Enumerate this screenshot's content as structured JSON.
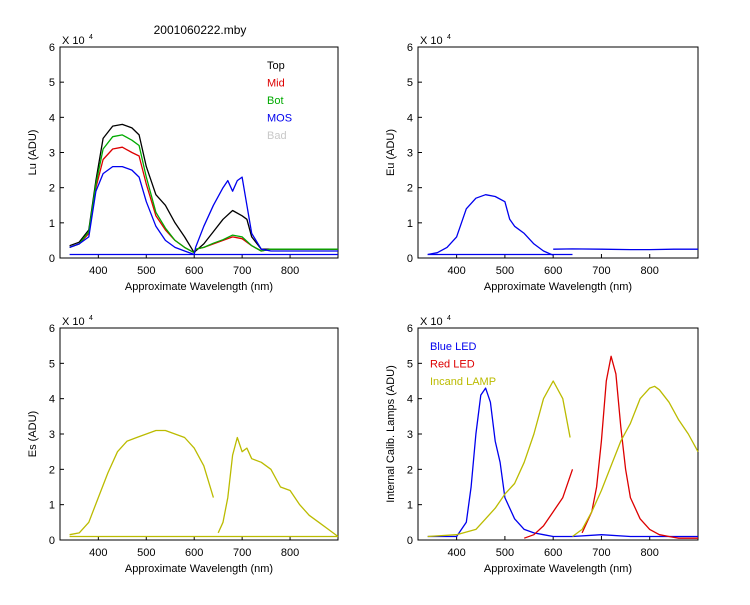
{
  "figure_title": "2001060222.mby",
  "chart_data": [
    {
      "type": "line",
      "panel": "top-left",
      "xlabel": "Approximate Wavelength (nm)",
      "ylabel": "Lu (ADU)",
      "y_exponent_label": "X 10",
      "y_exponent_power": "4",
      "xlim": [
        320,
        900
      ],
      "ylim": [
        0,
        6
      ],
      "xticks": [
        400,
        500,
        600,
        700,
        800
      ],
      "yticks": [
        0,
        1,
        2,
        3,
        4,
        5,
        6
      ],
      "legend": {
        "placement": "top-right",
        "entries": [
          {
            "label": "Top",
            "color": "#000000"
          },
          {
            "label": "Mid",
            "color": "#dd0000"
          },
          {
            "label": "Bot",
            "color": "#00aa00"
          },
          {
            "label": "MOS",
            "color": "#0000ee"
          },
          {
            "label": "Bad",
            "color": "#c8c8c8"
          }
        ]
      },
      "series": [
        {
          "name": "Top",
          "color": "#000000",
          "x": [
            340,
            360,
            380,
            395,
            410,
            430,
            450,
            470,
            485,
            500,
            520,
            540,
            560,
            580,
            600,
            603,
            620,
            640,
            660,
            680,
            700,
            710,
            720,
            740,
            760,
            800,
            850,
            900
          ],
          "y": [
            0.35,
            0.45,
            0.8,
            2.2,
            3.4,
            3.75,
            3.8,
            3.7,
            3.5,
            2.6,
            1.8,
            1.5,
            1.0,
            0.6,
            0.15,
            0.2,
            0.4,
            0.75,
            1.1,
            1.35,
            1.2,
            1.1,
            0.6,
            0.25,
            0.25,
            0.25,
            0.25,
            0.25
          ]
        },
        {
          "name": "Mid",
          "color": "#dd0000",
          "x": [
            340,
            360,
            380,
            395,
            410,
            430,
            450,
            470,
            485,
            500,
            520,
            540,
            560,
            580,
            600,
            603,
            620,
            640,
            660,
            680,
            700,
            720,
            740,
            760,
            800,
            850,
            900
          ],
          "y": [
            0.3,
            0.4,
            0.7,
            2.0,
            2.8,
            3.1,
            3.15,
            3.0,
            2.9,
            2.1,
            1.2,
            0.8,
            0.5,
            0.3,
            0.15,
            0.25,
            0.3,
            0.4,
            0.5,
            0.6,
            0.55,
            0.35,
            0.2,
            0.25,
            0.25,
            0.25,
            0.25
          ]
        },
        {
          "name": "Bot",
          "color": "#00aa00",
          "x": [
            340,
            360,
            380,
            395,
            410,
            430,
            450,
            470,
            485,
            500,
            520,
            540,
            560,
            580,
            600,
            603,
            620,
            640,
            660,
            680,
            700,
            720,
            740,
            760,
            800,
            850,
            900
          ],
          "y": [
            0.3,
            0.4,
            0.75,
            2.1,
            3.1,
            3.45,
            3.5,
            3.35,
            3.2,
            2.3,
            1.3,
            0.85,
            0.5,
            0.3,
            0.15,
            0.25,
            0.3,
            0.42,
            0.52,
            0.65,
            0.6,
            0.35,
            0.2,
            0.25,
            0.25,
            0.25,
            0.25
          ]
        },
        {
          "name": "MOS",
          "color": "#0000ee",
          "x": [
            340,
            360,
            380,
            395,
            410,
            430,
            450,
            470,
            485,
            500,
            520,
            540,
            560,
            580,
            600,
            603,
            620,
            640,
            660,
            670,
            680,
            690,
            700,
            710,
            720,
            740,
            760,
            800,
            850,
            900
          ],
          "y": [
            0.3,
            0.4,
            0.6,
            1.9,
            2.4,
            2.6,
            2.6,
            2.5,
            2.3,
            1.6,
            0.9,
            0.5,
            0.3,
            0.2,
            0.1,
            0.3,
            0.9,
            1.5,
            2.0,
            2.2,
            1.9,
            2.2,
            2.3,
            1.5,
            0.7,
            0.25,
            0.2,
            0.2,
            0.2,
            0.2
          ]
        },
        {
          "name": "",
          "color": "#0000ee",
          "x": [
            340,
            900
          ],
          "y": [
            0.1,
            0.1
          ]
        }
      ]
    },
    {
      "type": "line",
      "panel": "top-right",
      "xlabel": "Approximate Wavelength (nm)",
      "ylabel": "Eu  (ADU)",
      "y_exponent_label": "X 10",
      "y_exponent_power": "4",
      "xlim": [
        320,
        900
      ],
      "ylim": [
        0,
        6
      ],
      "xticks": [
        400,
        500,
        600,
        700,
        800
      ],
      "yticks": [
        0,
        1,
        2,
        3,
        4,
        5,
        6
      ],
      "series": [
        {
          "name": "",
          "color": "#0000ee",
          "x": [
            340,
            360,
            380,
            400,
            420,
            440,
            460,
            480,
            500,
            510,
            520,
            540,
            560,
            580,
            600
          ],
          "y": [
            0.1,
            0.15,
            0.3,
            0.6,
            1.4,
            1.7,
            1.8,
            1.75,
            1.6,
            1.1,
            0.9,
            0.7,
            0.4,
            0.2,
            0.08
          ]
        },
        {
          "name": "",
          "color": "#0000ee",
          "x": [
            600,
            640,
            700,
            760,
            800,
            850,
            900
          ],
          "y": [
            0.25,
            0.26,
            0.25,
            0.24,
            0.24,
            0.25,
            0.25
          ]
        },
        {
          "name": "",
          "color": "#0000ee",
          "x": [
            340,
            640
          ],
          "y": [
            0.1,
            0.1
          ]
        }
      ]
    },
    {
      "type": "line",
      "panel": "bottom-left",
      "xlabel": "Approximate Wavelength (nm)",
      "ylabel": "Es  (ADU)",
      "y_exponent_label": "X 10",
      "y_exponent_power": "4",
      "xlim": [
        320,
        900
      ],
      "ylim": [
        0,
        6
      ],
      "xticks": [
        400,
        500,
        600,
        700,
        800
      ],
      "yticks": [
        0,
        1,
        2,
        3,
        4,
        5,
        6
      ],
      "series": [
        {
          "name": "",
          "color": "#bbbb00",
          "x": [
            340,
            360,
            380,
            400,
            420,
            440,
            460,
            480,
            500,
            520,
            540,
            560,
            580,
            600,
            620,
            640
          ],
          "y": [
            0.15,
            0.2,
            0.5,
            1.2,
            1.9,
            2.5,
            2.8,
            2.9,
            3.0,
            3.1,
            3.1,
            3.0,
            2.9,
            2.6,
            2.1,
            1.2
          ]
        },
        {
          "name": "",
          "color": "#bbbb00",
          "x": [
            650,
            660,
            670,
            680,
            690,
            700,
            710,
            720,
            740,
            760,
            780,
            800,
            820,
            840,
            860,
            880,
            900
          ],
          "y": [
            0.2,
            0.5,
            1.2,
            2.4,
            2.9,
            2.5,
            2.6,
            2.3,
            2.2,
            2.0,
            1.5,
            1.4,
            1.0,
            0.7,
            0.5,
            0.3,
            0.1
          ]
        },
        {
          "name": "",
          "color": "#bbbb00",
          "x": [
            340,
            900
          ],
          "y": [
            0.1,
            0.1
          ]
        }
      ]
    },
    {
      "type": "line",
      "panel": "bottom-right",
      "xlabel": "Approximate Wavelength (nm)",
      "ylabel": "Internal Calib. Lamps (ADU)",
      "y_exponent_label": "X 10",
      "y_exponent_power": "4",
      "xlim": [
        320,
        900
      ],
      "ylim": [
        0,
        6
      ],
      "xticks": [
        400,
        500,
        600,
        700,
        800
      ],
      "yticks": [
        0,
        1,
        2,
        3,
        4,
        5,
        6
      ],
      "legend": {
        "placement": "top-left",
        "entries": [
          {
            "label": "Blue LED",
            "color": "#0000ee"
          },
          {
            "label": "Red LED",
            "color": "#dd0000"
          },
          {
            "label": "Incand LAMP",
            "color": "#bbbb00"
          }
        ]
      },
      "series": [
        {
          "name": "Blue LED",
          "color": "#0000ee",
          "x": [
            340,
            400,
            420,
            430,
            440,
            450,
            460,
            470,
            480,
            490,
            500,
            520,
            540,
            560,
            580,
            600,
            640,
            700,
            760,
            800,
            900
          ],
          "y": [
            0.1,
            0.1,
            0.5,
            1.5,
            3.0,
            4.1,
            4.3,
            3.9,
            2.8,
            2.2,
            1.2,
            0.6,
            0.3,
            0.2,
            0.15,
            0.1,
            0.1,
            0.15,
            0.1,
            0.1,
            0.1
          ]
        },
        {
          "name": "Red LED",
          "color": "#dd0000",
          "x": [
            540,
            560,
            580,
            600,
            620,
            640
          ],
          "y": [
            0.05,
            0.15,
            0.4,
            0.8,
            1.2,
            2.0
          ]
        },
        {
          "name": "Red LED",
          "color": "#dd0000",
          "x": [
            660,
            680,
            690,
            700,
            710,
            720,
            730,
            740,
            750,
            760,
            780,
            800,
            820,
            840,
            860,
            880,
            900
          ],
          "y": [
            0.2,
            0.8,
            1.5,
            2.8,
            4.5,
            5.2,
            4.7,
            3.2,
            2.0,
            1.2,
            0.6,
            0.3,
            0.15,
            0.1,
            0.05,
            0.05,
            0.05
          ]
        },
        {
          "name": "Incand LAMP",
          "color": "#bbbb00",
          "x": [
            340,
            400,
            440,
            460,
            480,
            500,
            520,
            540,
            560,
            580,
            600,
            620,
            635
          ],
          "y": [
            0.1,
            0.15,
            0.3,
            0.6,
            0.9,
            1.3,
            1.6,
            2.2,
            3.0,
            4.0,
            4.5,
            4.0,
            2.9
          ]
        },
        {
          "name": "Incand LAMP",
          "color": "#bbbb00",
          "x": [
            640,
            660,
            680,
            700,
            720,
            740,
            760,
            780,
            800,
            810,
            820,
            840,
            860,
            880,
            900
          ],
          "y": [
            0.1,
            0.3,
            0.8,
            1.4,
            2.1,
            2.8,
            3.3,
            4.0,
            4.3,
            4.35,
            4.25,
            3.9,
            3.4,
            3.0,
            2.5
          ]
        }
      ]
    }
  ]
}
